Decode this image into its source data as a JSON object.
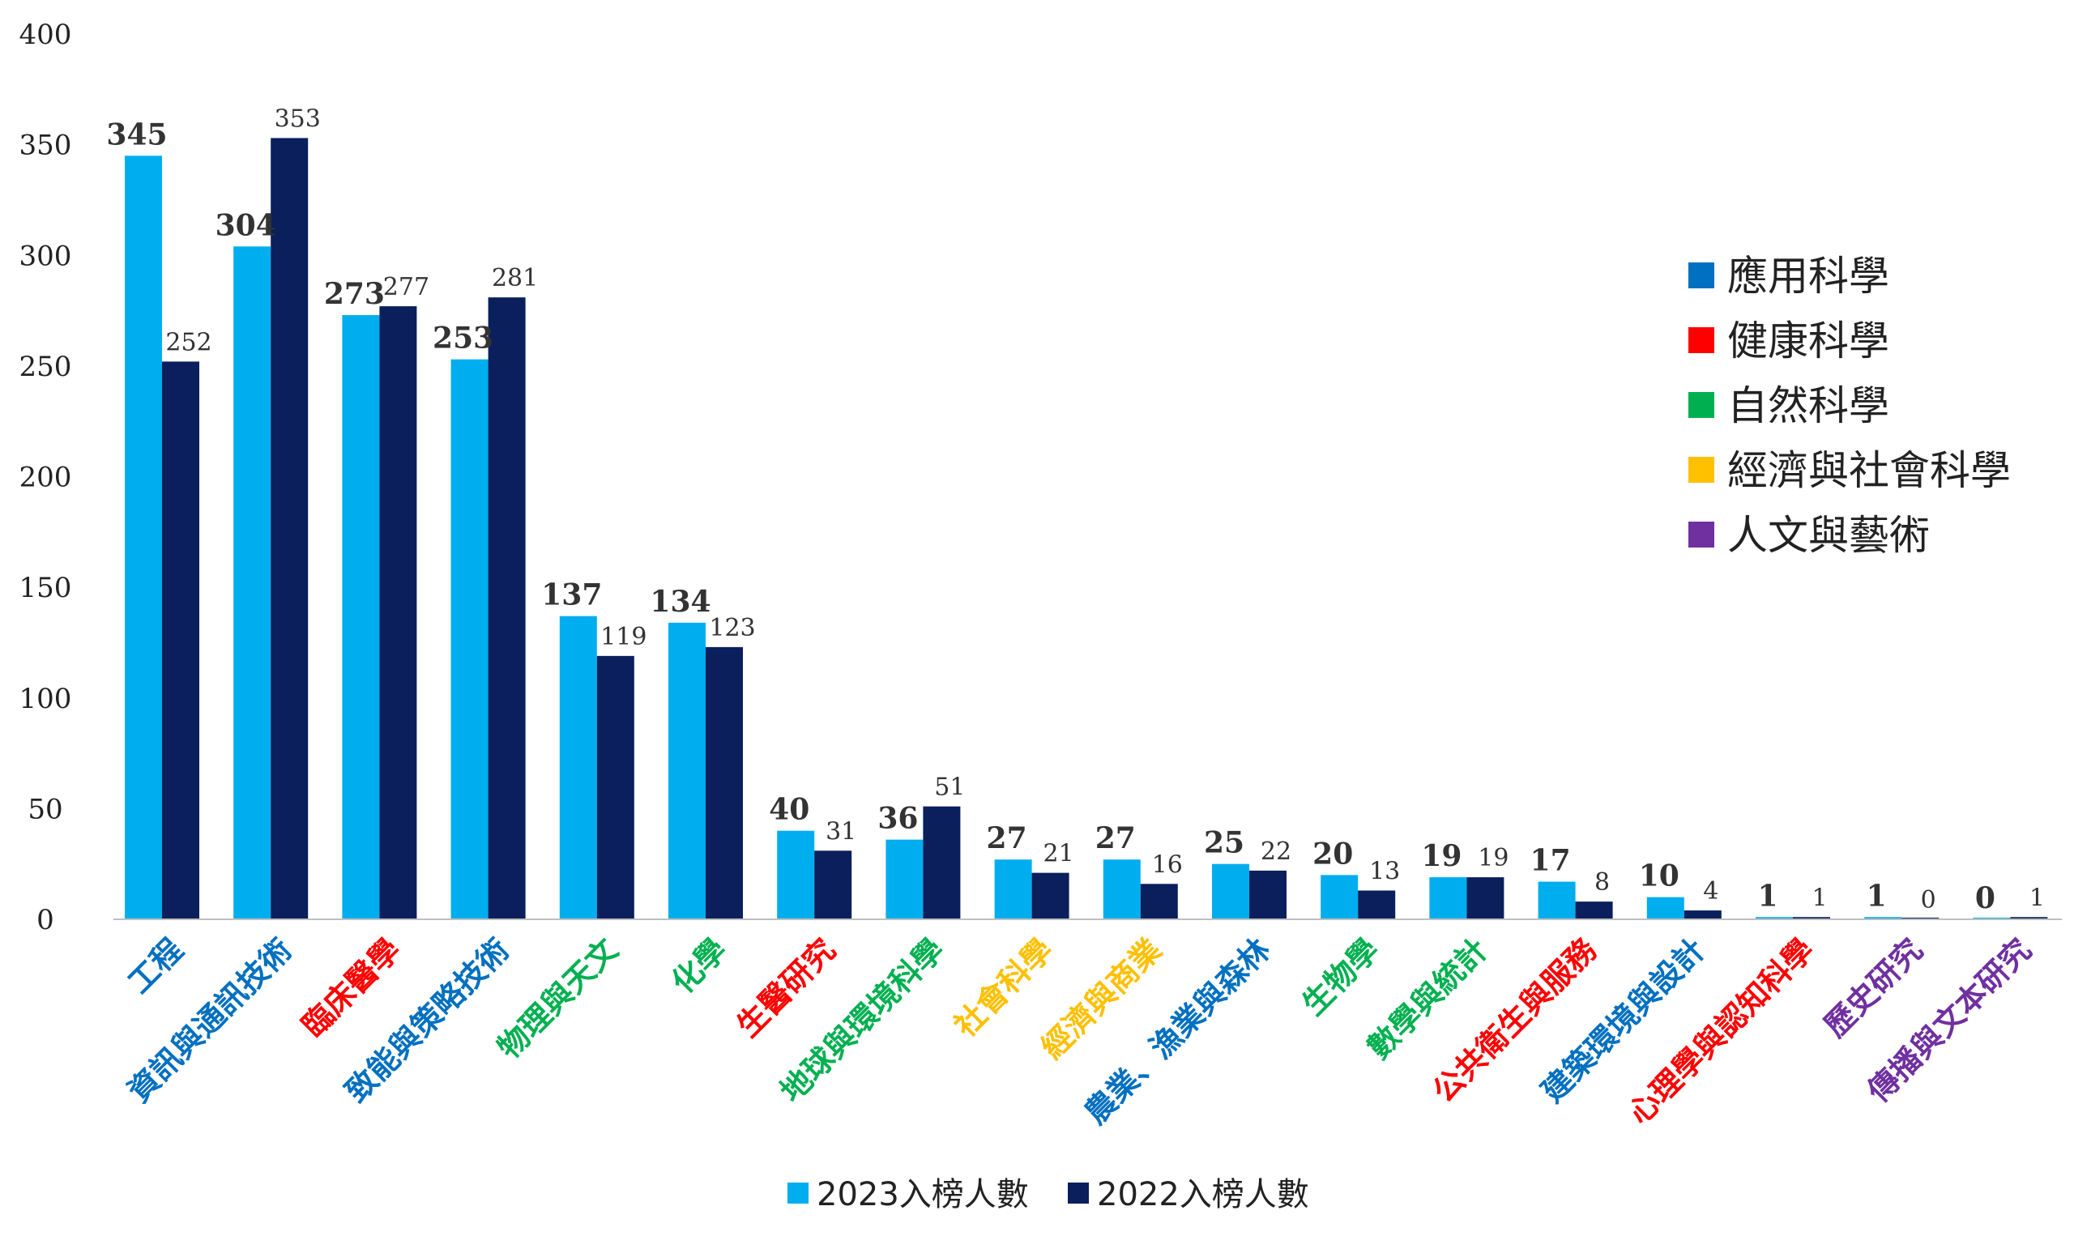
{
  "chart_data": {
    "type": "bar",
    "categories": [
      "工程",
      "資訊與通訊技術",
      "臨床醫學",
      "致能與策略技術",
      "物理與天文",
      "化學",
      "生醫研究",
      "地球與環境科學",
      "社會科學",
      "經濟與商業",
      "農業、漁業與森林",
      "生物學",
      "數學與統計",
      "公共衛生與服務",
      "建築環境與設計",
      "心理學與認知科學",
      "歷史研究",
      "傳播與文本研究"
    ],
    "category_fields": [
      "應用科學",
      "應用科學",
      "健康科學",
      "應用科學",
      "自然科學",
      "自然科學",
      "健康科學",
      "自然科學",
      "經濟與社會科學",
      "經濟與社會科學",
      "應用科學",
      "自然科學",
      "自然科學",
      "健康科學",
      "應用科學",
      "健康科學",
      "人文與藝術",
      "人文與藝術"
    ],
    "series": [
      {
        "name": "2023入榜人數",
        "color": "#00aeef",
        "values": [
          345,
          304,
          273,
          253,
          137,
          134,
          40,
          36,
          27,
          27,
          25,
          20,
          19,
          17,
          10,
          1,
          1,
          0
        ]
      },
      {
        "name": "2022入榜人數",
        "color": "#0a1f5c",
        "values": [
          252,
          353,
          277,
          281,
          119,
          123,
          31,
          51,
          21,
          16,
          22,
          13,
          19,
          8,
          4,
          1,
          0,
          1
        ]
      }
    ],
    "ylim": [
      0,
      400
    ],
    "yticks": [
      0,
      50,
      100,
      150,
      200,
      250,
      300,
      350,
      400
    ],
    "legend_position": "bottom-center",
    "field_legend": [
      {
        "label": "應用科學",
        "color": "#0070c0"
      },
      {
        "label": "健康科學",
        "color": "#ff0000"
      },
      {
        "label": "自然科學",
        "color": "#00b050"
      },
      {
        "label": "經濟與社會科學",
        "color": "#ffc000"
      },
      {
        "label": "人文與藝術",
        "color": "#7030a0"
      }
    ],
    "grid": false
  }
}
